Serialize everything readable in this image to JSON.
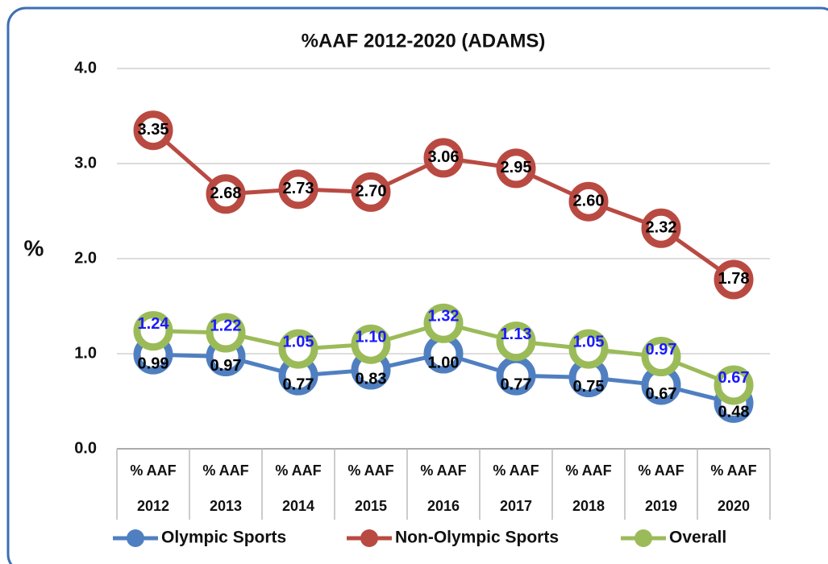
{
  "chart_data": {
    "type": "line",
    "title": "%AAF 2012-2020 (ADAMS)",
    "y_label": "%",
    "categories": [
      "% AAF 2012",
      "% AAF 2013",
      "% AAF 2014",
      "% AAF 2015",
      "% AAF 2016",
      "% AAF 2017",
      "% AAF 2018",
      "% AAF 2019",
      "% AAF 2020"
    ],
    "series": [
      {
        "name": "Olympic Sports",
        "color": "#4f7fc0",
        "label_color": "#000000",
        "values": [
          0.99,
          0.97,
          0.77,
          0.83,
          1.0,
          0.77,
          0.75,
          0.67,
          0.48
        ],
        "value_labels": [
          "0.99",
          "0.97",
          "0.77",
          "0.83",
          "1.00",
          "0.77",
          "0.75",
          "0.67",
          "0.48"
        ]
      },
      {
        "name": "Non-Olympic Sports",
        "color": "#b94a42",
        "label_color": "#000000",
        "values": [
          3.35,
          2.68,
          2.73,
          2.7,
          3.06,
          2.95,
          2.6,
          2.32,
          1.78
        ],
        "value_labels": [
          "3.35",
          "2.68",
          "2.73",
          "2.70",
          "3.06",
          "2.95",
          "2.60",
          "2.32",
          "1.78"
        ]
      },
      {
        "name": "Overall",
        "color": "#9bbb59",
        "label_color": "#1a1aff",
        "values": [
          1.24,
          1.22,
          1.05,
          1.1,
          1.32,
          1.13,
          1.05,
          0.97,
          0.67
        ],
        "value_labels": [
          "1.24",
          "1.22",
          "1.05",
          "1.10",
          "1.32",
          "1.13",
          "1.05",
          "0.97",
          "0.67"
        ]
      }
    ],
    "ylim": [
      0,
      4
    ],
    "yticks": [
      {
        "value": 0,
        "label": "0.0"
      },
      {
        "value": 1,
        "label": "1.0"
      },
      {
        "value": 2,
        "label": "2.0"
      },
      {
        "value": 3,
        "label": "3.0"
      },
      {
        "value": 4,
        "label": "4.0"
      }
    ],
    "grid": true,
    "legend": "bottom"
  }
}
